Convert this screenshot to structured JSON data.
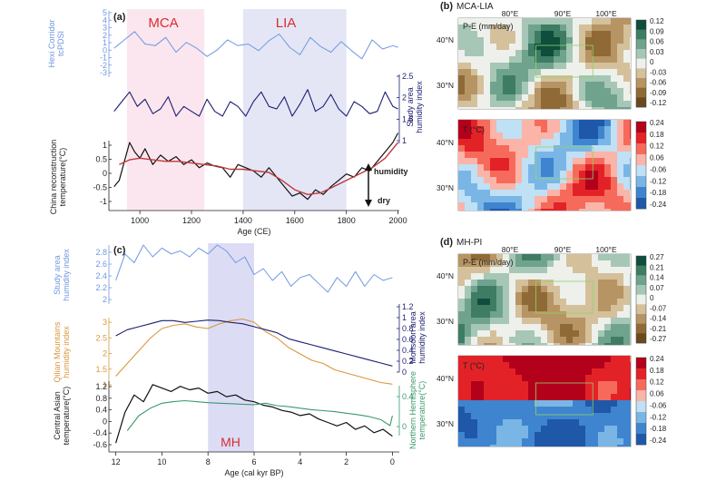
{
  "panel_a": {
    "label": "(a)",
    "period_labels": [
      "MCA",
      "LIA"
    ],
    "xlabel": "Age (CE)",
    "x_ticks": [
      "1000",
      "1200",
      "1400",
      "1600",
      "1800",
      "2000"
    ],
    "y1_label": [
      "Hexi Corridor",
      "tcPDSI"
    ],
    "y1_ticks": [
      "5",
      "4",
      "3",
      "2",
      "1",
      "0",
      "-1",
      "-2",
      "-3"
    ],
    "y2_label": [
      "Study area",
      "humidity index"
    ],
    "y2_ticks": [
      "2.5",
      "2",
      "1.5",
      "1"
    ],
    "y3_label": [
      "China reconstruction",
      "temperature(°C)"
    ],
    "y3_ticks": [
      "1",
      "0.5",
      "0",
      "-0.5",
      "-1"
    ],
    "arrow_top": "humidity",
    "arrow_bottom": "dry"
  },
  "panel_b": {
    "label": "(b)",
    "title": "MCA-LIA",
    "lon_ticks": [
      "80°E",
      "90°E",
      "100°E"
    ],
    "lat_ticks": [
      "40°N",
      "30°N"
    ],
    "pe_label": "P-E (mm/day)",
    "pe_ticks": [
      "0.12",
      "0.09",
      "0.06",
      "0.03",
      "0",
      "-0.03",
      "-0.06",
      "-0.09",
      "-0.12"
    ],
    "t_label": "T (°C)",
    "t_ticks": [
      "0.24",
      "0.18",
      "0.12",
      "0.06",
      "-0.06",
      "-0.12",
      "-0.18",
      "-0.24"
    ]
  },
  "panel_c": {
    "label": "(c)",
    "period_label": "MH",
    "xlabel": "Age (cal kyr BP)",
    "x_ticks": [
      "12",
      "10",
      "8",
      "6",
      "4",
      "2",
      "0"
    ],
    "y1_label": [
      "Study area",
      "humidity index"
    ],
    "y1_ticks": [
      "2.8",
      "2.6",
      "2.4",
      "2.2",
      "2"
    ],
    "y2_label": [
      "Qilian Mountains",
      "humidity index"
    ],
    "y2_ticks": [
      "3",
      "2.5",
      "2",
      "1.5",
      "1"
    ],
    "y3_label": [
      "Monsoon area",
      "humidity index"
    ],
    "y3_ticks": [
      "1.2",
      "1",
      "0.8",
      "0.6",
      "0.4",
      "0.2",
      "0"
    ],
    "y4_label": [
      "Central Asian",
      "temperature(°C)"
    ],
    "y4_ticks": [
      "1.2",
      "0.8",
      "0.4",
      "0",
      "-0.4",
      "-0.6"
    ],
    "y5_label": [
      "Northern Hemisphere",
      "temperature(°C)"
    ],
    "y5_ticks": [
      "0.4",
      "0"
    ]
  },
  "panel_d": {
    "label": "(d)",
    "title": "MH-PI",
    "lon_ticks": [
      "80°E",
      "90°E",
      "100°E"
    ],
    "lat_ticks": [
      "40°N",
      "30°N"
    ],
    "pe_label": "P-E (mm/day)",
    "pe_ticks": [
      "0.27",
      "0.21",
      "0.14",
      "0.07",
      "0",
      "-0.07",
      "-0.14",
      "-0.21",
      "-0.27"
    ],
    "t_label": "T (°C)",
    "t_ticks": [
      "0.24",
      "0.18",
      "0.12",
      "0.06",
      "-0.06",
      "-0.12",
      "-0.18",
      "-0.24"
    ]
  },
  "colors": {
    "light_blue": "#6f98e0",
    "dark_blue": "#1c1f72",
    "black": "#111111",
    "red_smooth": "#c0393b",
    "orange": "#d9973c",
    "green": "#3a9a6c",
    "pink_band": "#fbe6ef",
    "blue_band": "#e4e6f6",
    "mh_band": "#dcdcf5"
  },
  "chart_data": [
    {
      "type": "line",
      "panel": "a",
      "x_range": [
        880,
        2005
      ],
      "bands": [
        {
          "label": "MCA",
          "from": 950,
          "to": 1250
        },
        {
          "label": "LIA",
          "from": 1400,
          "to": 1800
        }
      ],
      "series": [
        {
          "axis": "tcPDSI",
          "ylim": [
            -3,
            5
          ],
          "x": [
            900,
            940,
            980,
            1020,
            1060,
            1100,
            1140,
            1180,
            1220,
            1260,
            1300,
            1340,
            1380,
            1420,
            1460,
            1500,
            1540,
            1580,
            1620,
            1660,
            1700,
            1740,
            1780,
            1820,
            1860,
            1900,
            1940,
            1980,
            2000
          ],
          "y": [
            0.5,
            1.5,
            2.5,
            1.0,
            0.8,
            1.8,
            0.0,
            1.2,
            0.5,
            -0.5,
            0.3,
            1.5,
            0.8,
            1.0,
            0.2,
            1.4,
            2.2,
            0.6,
            -0.3,
            1.8,
            0.7,
            0.0,
            1.3,
            0.2,
            -0.8,
            1.5,
            0.4,
            0.8,
            0.6
          ]
        },
        {
          "axis": "study area humidity index",
          "ylim": [
            1,
            2.5
          ],
          "x": [
            900,
            930,
            960,
            990,
            1020,
            1050,
            1080,
            1110,
            1140,
            1170,
            1200,
            1230,
            1260,
            1290,
            1320,
            1350,
            1380,
            1410,
            1440,
            1470,
            1500,
            1530,
            1560,
            1590,
            1620,
            1650,
            1680,
            1710,
            1740,
            1770,
            1800,
            1830,
            1860,
            1890,
            1920,
            1950,
            1980,
            2000
          ],
          "y": [
            1.7,
            1.9,
            2.1,
            1.8,
            1.95,
            1.65,
            1.75,
            2.0,
            1.6,
            1.8,
            1.7,
            1.6,
            1.95,
            1.7,
            1.6,
            1.9,
            1.8,
            1.6,
            1.9,
            2.1,
            1.8,
            1.75,
            2.0,
            1.6,
            1.85,
            2.15,
            1.7,
            1.8,
            2.05,
            1.75,
            1.6,
            1.9,
            1.8,
            1.65,
            1.7,
            2.1,
            1.8,
            1.75
          ]
        },
        {
          "axis": "China reconstruction temperature",
          "ylim": [
            -1.2,
            1.1
          ],
          "x": [
            900,
            920,
            940,
            960,
            980,
            1000,
            1020,
            1050,
            1080,
            1110,
            1140,
            1170,
            1200,
            1230,
            1260,
            1290,
            1320,
            1350,
            1380,
            1410,
            1440,
            1470,
            1500,
            1530,
            1560,
            1590,
            1620,
            1650,
            1680,
            1710,
            1740,
            1770,
            1800,
            1830,
            1860,
            1890,
            1920,
            1950,
            1980,
            2000
          ],
          "y": [
            -0.5,
            -0.3,
            0.3,
            0.9,
            0.6,
            0.4,
            0.7,
            0.2,
            0.5,
            0.3,
            0.45,
            0.2,
            0.35,
            0.1,
            0.25,
            0.15,
            0.1,
            -0.2,
            0.2,
            0.1,
            0.0,
            -0.2,
            0.1,
            -0.2,
            -0.5,
            -0.8,
            -0.7,
            -0.9,
            -0.6,
            -0.75,
            -0.5,
            -0.3,
            -0.1,
            -0.2,
            0.1,
            0.0,
            0.3,
            0.6,
            0.9,
            1.2
          ]
        },
        {
          "axis": "China reconstruction temperature (smoothed)",
          "ylim": [
            -1.2,
            1.1
          ],
          "x": [
            920,
            960,
            1000,
            1050,
            1100,
            1150,
            1200,
            1250,
            1300,
            1350,
            1400,
            1450,
            1500,
            1550,
            1600,
            1650,
            1700,
            1750,
            1800,
            1850,
            1900,
            1950,
            2000
          ],
          "y": [
            0.2,
            0.35,
            0.4,
            0.35,
            0.3,
            0.3,
            0.25,
            0.2,
            0.15,
            0.05,
            0.05,
            0.0,
            -0.05,
            -0.3,
            -0.6,
            -0.75,
            -0.7,
            -0.5,
            -0.3,
            -0.1,
            0.1,
            0.4,
            0.9
          ]
        }
      ]
    },
    {
      "type": "line",
      "panel": "c",
      "x_range": [
        12.3,
        -0.3
      ],
      "bands": [
        {
          "label": "MH",
          "from": 8,
          "to": 6
        }
      ],
      "series": [
        {
          "axis": "study area humidity index",
          "ylim": [
            1.9,
            2.9
          ],
          "x": [
            12,
            11.6,
            11.2,
            10.8,
            10.4,
            10.0,
            9.6,
            9.2,
            8.8,
            8.4,
            8.0,
            7.6,
            7.2,
            6.8,
            6.4,
            6.0,
            5.6,
            5.2,
            4.8,
            4.4,
            4.0,
            3.6,
            3.2,
            2.8,
            2.4,
            2.0,
            1.6,
            1.2,
            0.8,
            0.4,
            0
          ],
          "y": [
            2.3,
            2.75,
            2.6,
            2.9,
            2.7,
            2.85,
            2.75,
            2.8,
            2.7,
            2.85,
            2.75,
            2.9,
            2.8,
            2.6,
            2.7,
            2.4,
            2.5,
            2.3,
            2.45,
            2.2,
            2.35,
            2.4,
            2.25,
            2.1,
            2.35,
            2.2,
            2.45,
            2.2,
            2.4,
            2.3,
            2.35
          ]
        },
        {
          "axis": "Qilian Mountains humidity index",
          "ylim": [
            1,
            3.2
          ],
          "x": [
            12,
            11.5,
            11,
            10.5,
            10,
            9.5,
            9,
            8.5,
            8,
            7.5,
            7,
            6.5,
            6,
            5.5,
            5,
            4.5,
            4,
            3.5,
            3,
            2.5,
            2,
            1.5,
            1,
            0.5,
            0
          ],
          "y": [
            1.3,
            1.7,
            2.1,
            2.5,
            2.8,
            2.9,
            2.95,
            2.85,
            2.8,
            2.95,
            3.05,
            3.1,
            3.0,
            2.7,
            2.5,
            2.2,
            2.0,
            1.8,
            1.7,
            1.5,
            1.4,
            1.3,
            1.2,
            1.1,
            1.05
          ]
        },
        {
          "axis": "monsoon area humidity index",
          "ylim": [
            0,
            1.2
          ],
          "x": [
            12,
            11.5,
            11,
            10.5,
            10,
            9.5,
            9,
            8.5,
            8,
            7.5,
            7,
            6.5,
            6,
            5.5,
            5,
            4.5,
            4,
            3.5,
            3,
            2.5,
            2,
            1.5,
            1,
            0.5,
            0
          ],
          "y": [
            0.6,
            0.7,
            0.75,
            0.8,
            0.85,
            0.85,
            0.82,
            0.84,
            0.86,
            0.85,
            0.82,
            0.8,
            0.75,
            0.7,
            0.65,
            0.55,
            0.5,
            0.45,
            0.4,
            0.35,
            0.3,
            0.25,
            0.2,
            0.15,
            0.1
          ]
        },
        {
          "axis": "Central Asian temperature",
          "ylim": [
            -0.6,
            1.3
          ],
          "x": [
            12,
            11.6,
            11.2,
            10.8,
            10.4,
            10.0,
            9.6,
            9.2,
            8.8,
            8.4,
            8.0,
            7.6,
            7.2,
            6.8,
            6.4,
            6.0,
            5.6,
            5.2,
            4.8,
            4.4,
            4.0,
            3.6,
            3.2,
            2.8,
            2.4,
            2.0,
            1.6,
            1.2,
            0.8,
            0.4,
            0
          ],
          "y": [
            -0.5,
            0.4,
            0.9,
            0.7,
            1.2,
            1.1,
            1.0,
            1.15,
            1.05,
            1.1,
            0.95,
            1.0,
            0.85,
            0.9,
            0.75,
            0.7,
            0.6,
            0.55,
            0.45,
            0.4,
            0.3,
            0.35,
            0.2,
            0.1,
            0.0,
            0.1,
            -0.1,
            0.0,
            -0.2,
            -0.1,
            -0.3
          ]
        },
        {
          "axis": "Northern Hemisphere temperature",
          "ylim": [
            -0.3,
            0.7
          ],
          "x": [
            11.5,
            11,
            10.5,
            10,
            9.5,
            9,
            8.5,
            8,
            7.5,
            7,
            6.5,
            6,
            5.5,
            5,
            4.5,
            4,
            3.5,
            3,
            2.5,
            2,
            1.5,
            1,
            0.5,
            0.1,
            0
          ],
          "y": [
            -0.2,
            0.1,
            0.25,
            0.35,
            0.38,
            0.4,
            0.38,
            0.36,
            0.35,
            0.34,
            0.33,
            0.32,
            0.35,
            0.3,
            0.28,
            0.25,
            0.22,
            0.2,
            0.18,
            0.15,
            0.12,
            0.08,
            0.02,
            -0.1,
            0.1
          ]
        }
      ]
    }
  ]
}
